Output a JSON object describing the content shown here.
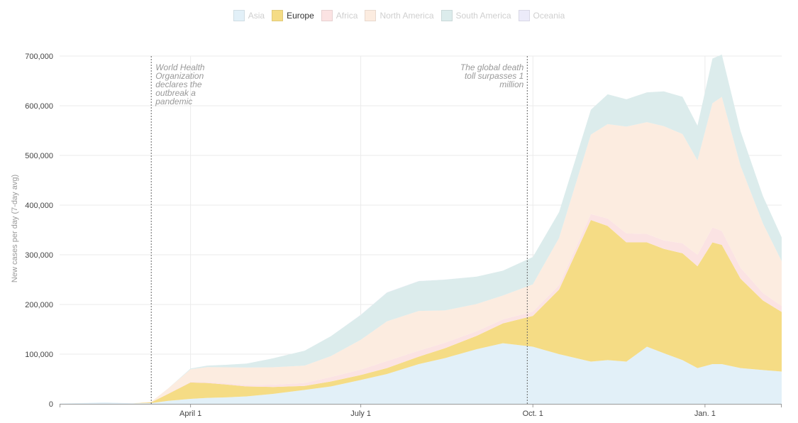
{
  "legend": {
    "items": [
      {
        "label": "Asia",
        "color": "#e2f0f8",
        "active": false
      },
      {
        "label": "Europe",
        "color": "#f5dc85",
        "active": true
      },
      {
        "label": "Africa",
        "color": "#fbe3e3",
        "active": false
      },
      {
        "label": "North America",
        "color": "#fcece0",
        "active": false
      },
      {
        "label": "South America",
        "color": "#dcecec",
        "active": false
      },
      {
        "label": "Oceania",
        "color": "#ecebf9",
        "active": false
      }
    ]
  },
  "annotations": [
    {
      "date": "2020-03-11",
      "lines": [
        "World Health",
        "Organization",
        "declares the",
        "outbreak a",
        "pandemic"
      ],
      "side": "right"
    },
    {
      "date": "2020-09-28",
      "lines": [
        "The global death",
        "toll surpasses 1",
        "million"
      ],
      "side": "left"
    }
  ],
  "chart_data": {
    "type": "area",
    "stacked": true,
    "ylabel": "New cases per day (7-day avg)",
    "xlim": [
      "2020-01-22",
      "2021-02-11"
    ],
    "ylim": [
      0,
      700000
    ],
    "yticks": [
      0,
      100000,
      200000,
      300000,
      400000,
      500000,
      600000,
      700000
    ],
    "ytick_labels": [
      "0",
      "100,000",
      "200,000",
      "300,000",
      "400,000",
      "500,000",
      "600,000",
      "700,000"
    ],
    "xticks": [
      {
        "date": "2020-04-01",
        "label": "April 1"
      },
      {
        "date": "2020-07-01",
        "label": "July 1"
      },
      {
        "date": "2020-10-01",
        "label": "Oct. 1"
      },
      {
        "date": "2021-01-01",
        "label": "Jan. 1"
      }
    ],
    "grid": true,
    "legend_position": "top-center",
    "x": [
      "2020-01-22",
      "2020-02-01",
      "2020-02-15",
      "2020-03-01",
      "2020-03-11",
      "2020-03-20",
      "2020-04-01",
      "2020-04-10",
      "2020-04-20",
      "2020-05-01",
      "2020-05-15",
      "2020-06-01",
      "2020-06-15",
      "2020-07-01",
      "2020-07-15",
      "2020-08-01",
      "2020-08-15",
      "2020-09-01",
      "2020-09-15",
      "2020-10-01",
      "2020-10-15",
      "2020-11-01",
      "2020-11-10",
      "2020-11-20",
      "2020-12-01",
      "2020-12-10",
      "2020-12-20",
      "2020-12-28",
      "2021-01-05",
      "2021-01-10",
      "2021-01-20",
      "2021-02-01",
      "2021-02-11"
    ],
    "series": [
      {
        "name": "Asia",
        "color": "#e2f0f8",
        "values": [
          500,
          1500,
          3000,
          1000,
          1500,
          6000,
          10000,
          12000,
          13000,
          15000,
          20000,
          28000,
          35000,
          48000,
          60000,
          80000,
          92000,
          110000,
          122000,
          115000,
          100000,
          85000,
          88000,
          85000,
          115000,
          102000,
          88000,
          72000,
          80000,
          80000,
          72000,
          68000,
          65000
        ]
      },
      {
        "name": "Europe",
        "color": "#f5dc85",
        "values": [
          0,
          0,
          0,
          200,
          1500,
          14000,
          33000,
          30000,
          26000,
          20000,
          14000,
          8000,
          10000,
          10000,
          12000,
          15000,
          20000,
          27000,
          40000,
          62000,
          130000,
          285000,
          270000,
          240000,
          210000,
          210000,
          215000,
          205000,
          245000,
          240000,
          180000,
          140000,
          120000
        ]
      },
      {
        "name": "Africa",
        "color": "#fbe3e3",
        "values": [
          0,
          0,
          0,
          0,
          100,
          800,
          1500,
          2000,
          2500,
          3000,
          4500,
          6000,
          9000,
          11000,
          14000,
          12000,
          11000,
          9000,
          8000,
          8500,
          9000,
          12000,
          15000,
          18000,
          17000,
          17000,
          20000,
          23000,
          30000,
          28000,
          22000,
          15000,
          12000
        ]
      },
      {
        "name": "North America",
        "color": "#fcece0",
        "values": [
          0,
          0,
          0,
          100,
          1000,
          10000,
          25000,
          30000,
          32000,
          35000,
          35000,
          35000,
          42000,
          60000,
          80000,
          80000,
          65000,
          55000,
          48000,
          55000,
          95000,
          160000,
          190000,
          215000,
          225000,
          230000,
          220000,
          190000,
          250000,
          270000,
          205000,
          140000,
          90000
        ]
      },
      {
        "name": "South America",
        "color": "#dcecec",
        "values": [
          0,
          0,
          0,
          0,
          50,
          200,
          1500,
          3000,
          5000,
          8000,
          18000,
          30000,
          40000,
          50000,
          58000,
          60000,
          62000,
          55000,
          50000,
          55000,
          52000,
          50000,
          60000,
          55000,
          60000,
          70000,
          75000,
          70000,
          90000,
          85000,
          70000,
          55000,
          48000
        ]
      },
      {
        "name": "Oceania",
        "color": "#ecebf9",
        "values": [
          0,
          0,
          0,
          0,
          20,
          100,
          200,
          80,
          30,
          10,
          10,
          15,
          100,
          400,
          500,
          300,
          200,
          80,
          30,
          20,
          20,
          20,
          15,
          20,
          30,
          30,
          50,
          30,
          20,
          20,
          15,
          10,
          10
        ]
      }
    ]
  }
}
